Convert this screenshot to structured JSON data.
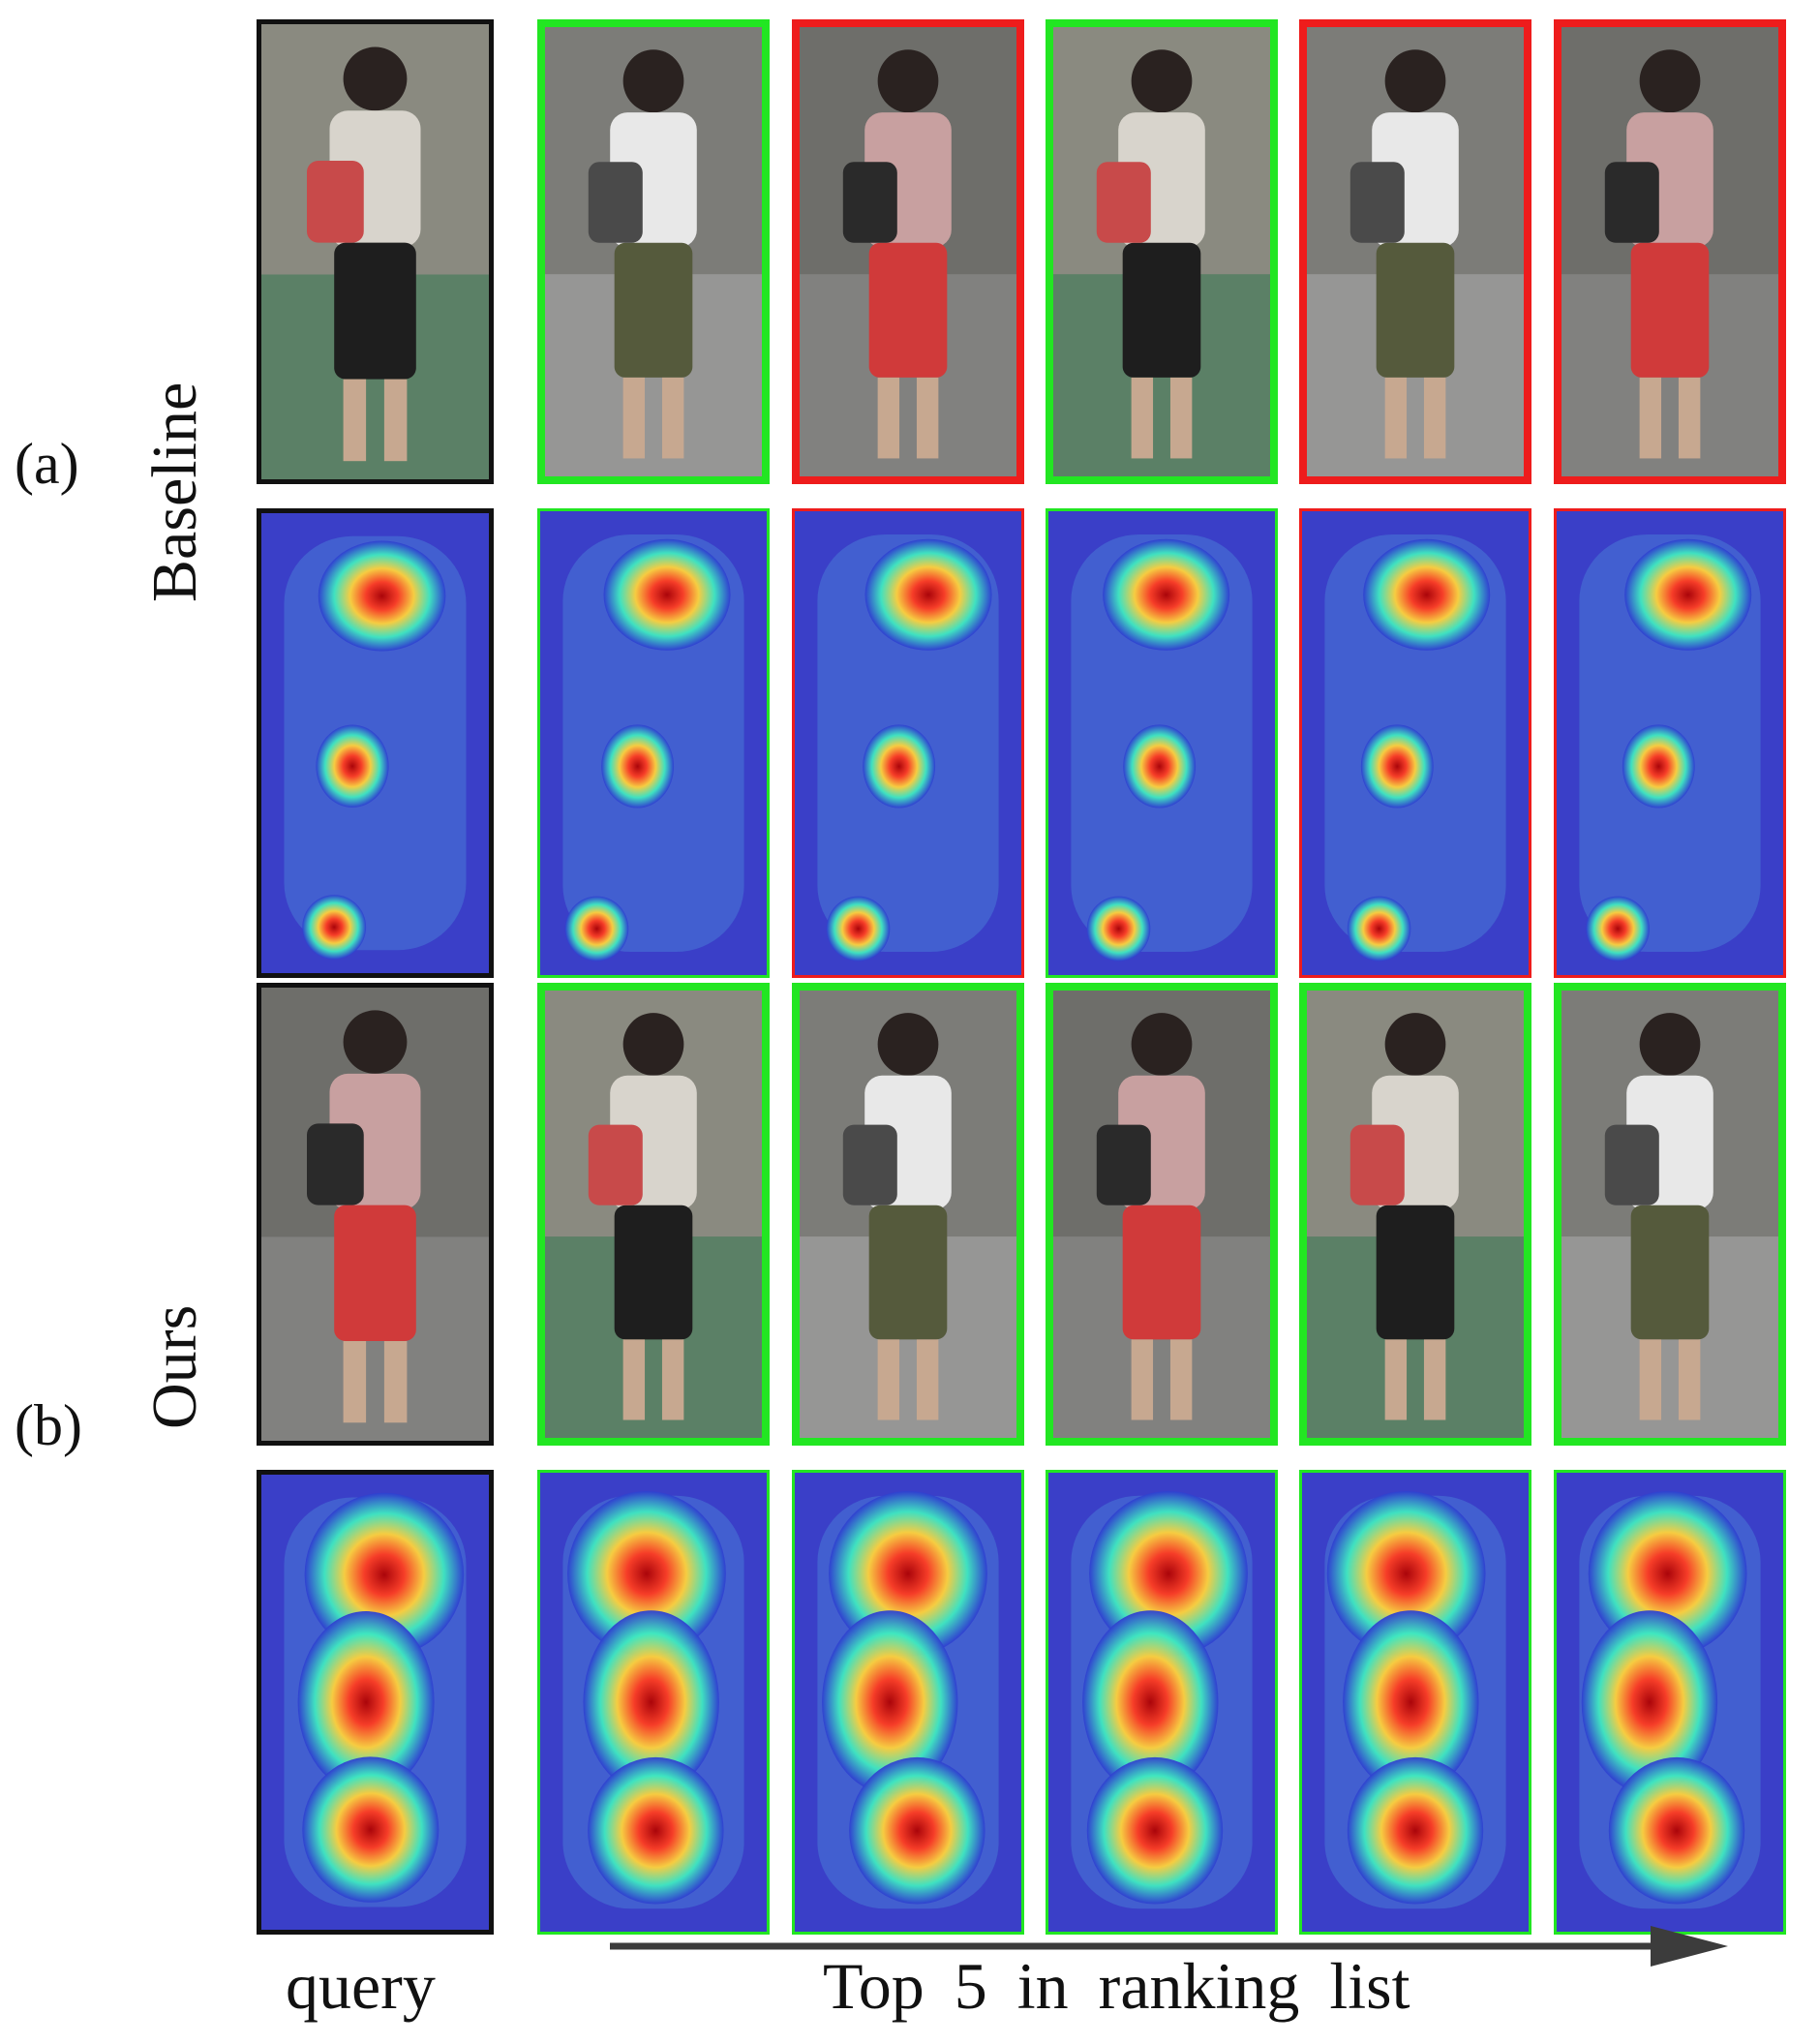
{
  "labels": {
    "panel_a": "(a)",
    "panel_b": "(b)",
    "row_a": "Baseline",
    "row_b": "Ours",
    "query": "query",
    "ranking": "Top 5 in ranking list"
  },
  "colors": {
    "match": "#22e622",
    "mismatch": "#ee1c1c",
    "query_border": "#111111",
    "arrow": "#3c3c3c"
  },
  "rows": [
    {
      "id": "baseline-photos",
      "kind": "photo",
      "query": {
        "border": "query"
      },
      "results": [
        {
          "rank": 1,
          "match": true
        },
        {
          "rank": 2,
          "match": false
        },
        {
          "rank": 3,
          "match": true
        },
        {
          "rank": 4,
          "match": false
        },
        {
          "rank": 5,
          "match": false
        }
      ]
    },
    {
      "id": "baseline-heatmaps",
      "kind": "heatmap",
      "query": {
        "border": "query"
      },
      "results": [
        {
          "rank": 1,
          "match": true
        },
        {
          "rank": 2,
          "match": false
        },
        {
          "rank": 3,
          "match": true
        },
        {
          "rank": 4,
          "match": false
        },
        {
          "rank": 5,
          "match": false
        }
      ]
    },
    {
      "id": "ours-photos",
      "kind": "photo",
      "query": {
        "border": "query"
      },
      "results": [
        {
          "rank": 1,
          "match": true
        },
        {
          "rank": 2,
          "match": true
        },
        {
          "rank": 3,
          "match": true
        },
        {
          "rank": 4,
          "match": true
        },
        {
          "rank": 5,
          "match": true
        }
      ]
    },
    {
      "id": "ours-heatmaps",
      "kind": "heatmap",
      "query": {
        "border": "query"
      },
      "results": [
        {
          "rank": 1,
          "match": true
        },
        {
          "rank": 2,
          "match": true
        },
        {
          "rank": 3,
          "match": true
        },
        {
          "rank": 4,
          "match": true
        },
        {
          "rank": 5,
          "match": true
        }
      ]
    }
  ]
}
